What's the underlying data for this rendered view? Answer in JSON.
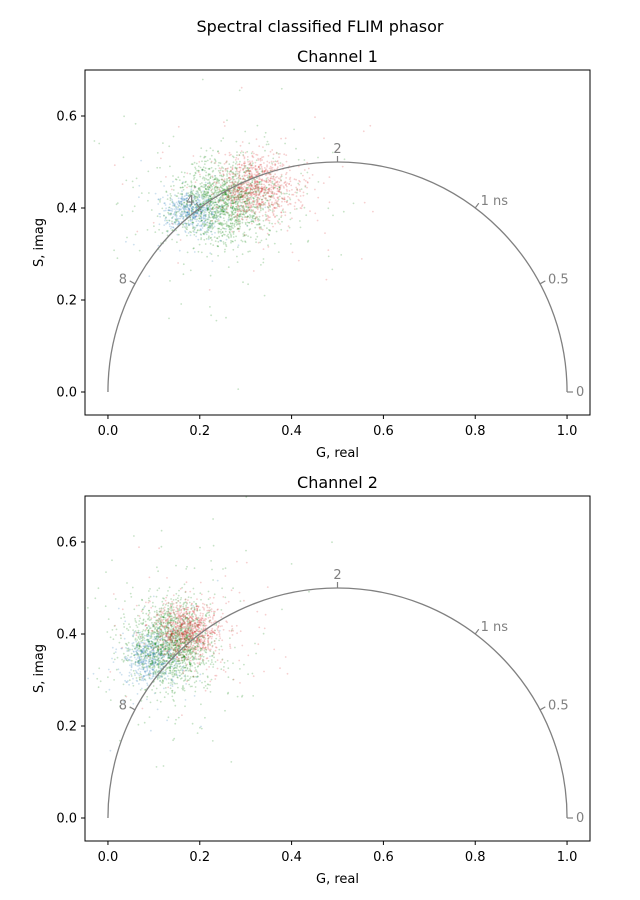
{
  "figure": {
    "suptitle": "Spectral classified FLIM phasor"
  },
  "chart_data": [
    {
      "type": "scatter",
      "title": "Channel 1",
      "xlabel": "G, real",
      "ylabel": "S, imag",
      "xlim": [
        -0.05,
        1.05
      ],
      "ylim": [
        -0.05,
        0.7
      ],
      "xticks": [
        0.0,
        0.2,
        0.4,
        0.6,
        0.8,
        1.0
      ],
      "xticklabels": [
        "0.0",
        "0.2",
        "0.4",
        "0.6",
        "0.8",
        "1.0"
      ],
      "yticks": [
        0.0,
        0.2,
        0.4,
        0.6
      ],
      "yticklabels": [
        "0.0",
        "0.2",
        "0.4",
        "0.6"
      ],
      "grid": false,
      "universal_circle": {
        "color": "#808080",
        "lifetime_labels": [
          {
            "label": "8",
            "g": 0.0588,
            "s": 0.2353
          },
          {
            "label": "4",
            "g": 0.2,
            "s": 0.4
          },
          {
            "label": "2",
            "g": 0.5,
            "s": 0.5
          },
          {
            "label": "1 ns",
            "g": 0.8,
            "s": 0.4
          },
          {
            "label": "0.5",
            "g": 0.9412,
            "s": 0.2353
          },
          {
            "label": "0",
            "g": 1.0,
            "s": 0.0
          }
        ]
      },
      "clusters": [
        {
          "color": "#1f77b4",
          "center": [
            0.185,
            0.392
          ],
          "spread": [
            0.03,
            0.022
          ],
          "count": 550
        },
        {
          "color": "#008000",
          "center": [
            0.255,
            0.415
          ],
          "spread": [
            0.055,
            0.045
          ],
          "count": 1600
        },
        {
          "color": "#d62728",
          "center": [
            0.325,
            0.445
          ],
          "spread": [
            0.045,
            0.035
          ],
          "count": 950
        }
      ]
    },
    {
      "type": "scatter",
      "title": "Channel 2",
      "xlabel": "G, real",
      "ylabel": "S, imag",
      "xlim": [
        -0.05,
        1.05
      ],
      "ylim": [
        -0.05,
        0.7
      ],
      "xticks": [
        0.0,
        0.2,
        0.4,
        0.6,
        0.8,
        1.0
      ],
      "xticklabels": [
        "0.0",
        "0.2",
        "0.4",
        "0.6",
        "0.8",
        "1.0"
      ],
      "yticks": [
        0.0,
        0.2,
        0.4,
        0.6
      ],
      "yticklabels": [
        "0.0",
        "0.2",
        "0.4",
        "0.6"
      ],
      "grid": false,
      "universal_circle": {
        "color": "#808080",
        "lifetime_labels": [
          {
            "label": "8",
            "g": 0.0588,
            "s": 0.2353
          },
          {
            "label": "2",
            "g": 0.5,
            "s": 0.5
          },
          {
            "label": "1 ns",
            "g": 0.8,
            "s": 0.4
          },
          {
            "label": "0.5",
            "g": 0.9412,
            "s": 0.2353
          },
          {
            "label": "0",
            "g": 1.0,
            "s": 0.0
          }
        ]
      },
      "clusters": [
        {
          "color": "#1f77b4",
          "center": [
            0.095,
            0.345
          ],
          "spread": [
            0.03,
            0.03
          ],
          "count": 550
        },
        {
          "color": "#008000",
          "center": [
            0.14,
            0.38
          ],
          "spread": [
            0.045,
            0.045
          ],
          "count": 1600
        },
        {
          "color": "#d62728",
          "center": [
            0.175,
            0.405
          ],
          "spread": [
            0.035,
            0.03
          ],
          "count": 950
        }
      ]
    }
  ]
}
